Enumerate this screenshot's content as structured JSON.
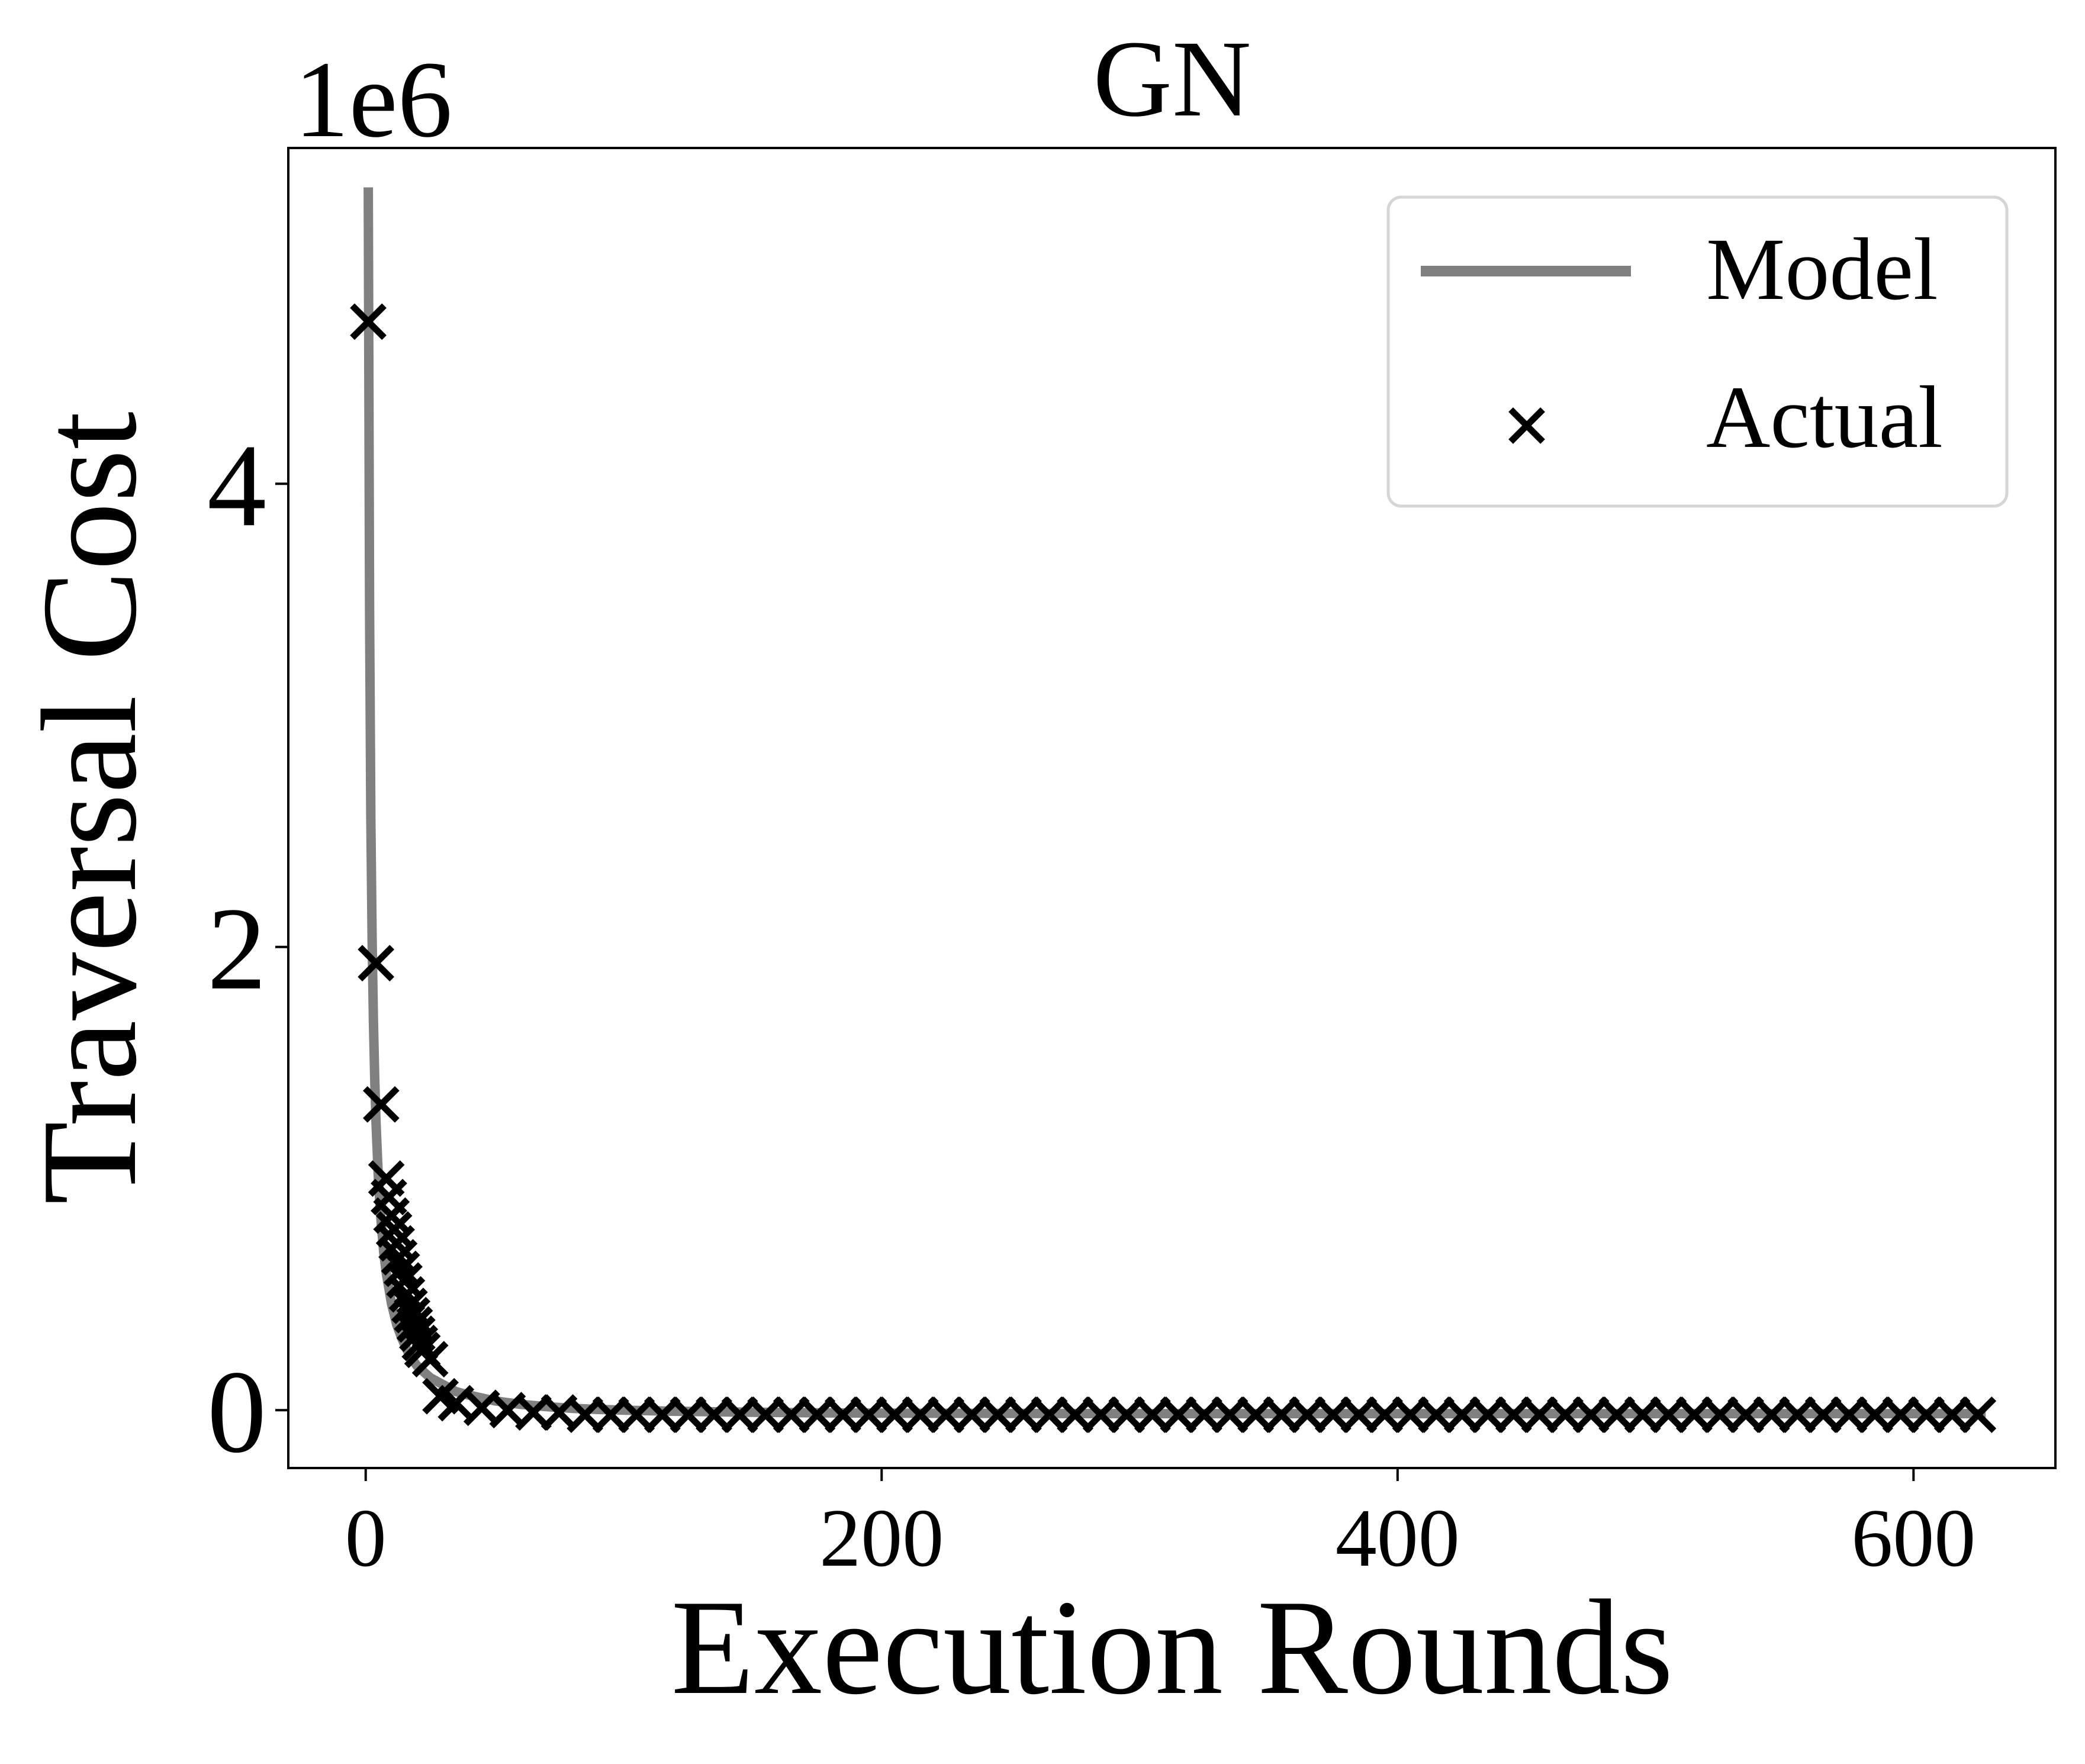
{
  "chart_data": {
    "type": "line",
    "title": "GN",
    "xlabel": "Execution Rounds",
    "ylabel": "Traversal Cost",
    "y_offset_label": "1e6",
    "xlim": [
      -30,
      655
    ],
    "ylim": [
      -0.25,
      5.45
    ],
    "x_ticks": [
      0,
      200,
      400,
      600
    ],
    "x_tick_labels": [
      "0",
      "200",
      "400",
      "600"
    ],
    "y_ticks": [
      0,
      2,
      4
    ],
    "y_tick_labels": [
      "0",
      "2",
      "4"
    ],
    "legend_position": "top-right",
    "grid": false,
    "series": [
      {
        "name": "Model",
        "kind": "line",
        "color": "#808080",
        "x": [
          1,
          1.5,
          2,
          2.5,
          3,
          3.5,
          4,
          5,
          6,
          7,
          8,
          10,
          12,
          14,
          16,
          18,
          20,
          25,
          30,
          35,
          40,
          50,
          60,
          70,
          80,
          90,
          100,
          120,
          140,
          160,
          180,
          200,
          250,
          300,
          350,
          400,
          450,
          500,
          550,
          600,
          628
        ],
        "y": [
          5.28,
          3.45,
          2.56,
          2.03,
          1.68,
          1.43,
          1.24,
          0.98,
          0.81,
          0.68,
          0.59,
          0.46,
          0.37,
          0.31,
          0.26,
          0.22,
          0.19,
          0.14,
          0.11,
          0.08,
          0.065,
          0.04,
          0.025,
          0.015,
          0.008,
          0.003,
          0.0,
          -0.005,
          -0.008,
          -0.01,
          -0.012,
          -0.013,
          -0.014,
          -0.015,
          -0.015,
          -0.015,
          -0.015,
          -0.015,
          -0.015,
          -0.015,
          -0.015
        ]
      },
      {
        "name": "Actual",
        "kind": "scatter",
        "marker": "x",
        "color": "#000000",
        "x": [
          1,
          4,
          6,
          8,
          9,
          10,
          11,
          12,
          13,
          14,
          15,
          16,
          17,
          18,
          19,
          20,
          21,
          22,
          25,
          29,
          35,
          45,
          55,
          65,
          75,
          85,
          95,
          105,
          115,
          125,
          135,
          145,
          155,
          165,
          175,
          185,
          195,
          205,
          215,
          225,
          235,
          245,
          255,
          265,
          275,
          285,
          295,
          305,
          315,
          325,
          335,
          345,
          355,
          365,
          375,
          385,
          395,
          405,
          415,
          425,
          435,
          445,
          455,
          465,
          475,
          485,
          495,
          505,
          515,
          525,
          535,
          545,
          555,
          565,
          575,
          585,
          595,
          605,
          615,
          625
        ],
        "y": [
          4.7,
          1.93,
          1.32,
          1.0,
          0.92,
          0.84,
          0.78,
          0.72,
          0.66,
          0.61,
          0.56,
          0.5,
          0.45,
          0.41,
          0.37,
          0.33,
          0.29,
          0.26,
          0.22,
          0.06,
          0.03,
          0.01,
          0.0,
          -0.01,
          -0.01,
          -0.02,
          -0.02,
          -0.02,
          -0.02,
          -0.02,
          -0.02,
          -0.02,
          -0.02,
          -0.02,
          -0.02,
          -0.02,
          -0.02,
          -0.02,
          -0.02,
          -0.02,
          -0.02,
          -0.02,
          -0.02,
          -0.02,
          -0.02,
          -0.02,
          -0.02,
          -0.02,
          -0.02,
          -0.02,
          -0.02,
          -0.02,
          -0.02,
          -0.02,
          -0.02,
          -0.02,
          -0.02,
          -0.02,
          -0.02,
          -0.02,
          -0.02,
          -0.02,
          -0.02,
          -0.02,
          -0.02,
          -0.02,
          -0.02,
          -0.02,
          -0.02,
          -0.02,
          -0.02,
          -0.02,
          -0.02,
          -0.02,
          -0.02,
          -0.02,
          -0.02,
          -0.02,
          -0.02,
          -0.02
        ]
      }
    ]
  }
}
